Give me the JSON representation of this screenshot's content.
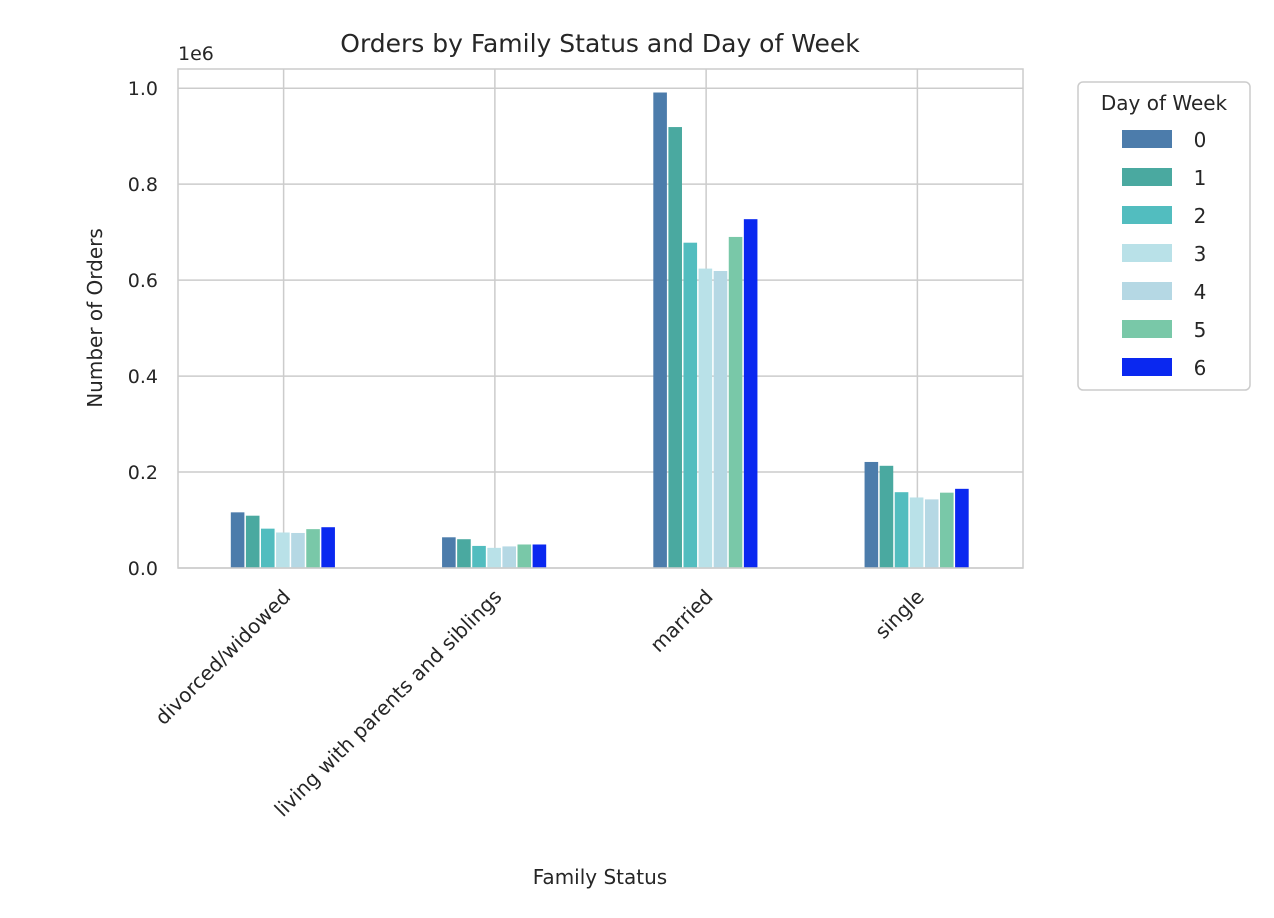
{
  "chart_data": {
    "type": "bar",
    "title": "Orders by Family Status and Day of Week",
    "xlabel": "Family Status",
    "ylabel": "Number of Orders",
    "y_offset_label": "1e6",
    "ylim": [
      0,
      1.04
    ],
    "yticks": [
      "0.0",
      "0.2",
      "0.4",
      "0.6",
      "0.8",
      "1.0"
    ],
    "grid": true,
    "legend": {
      "title": "Day of Week",
      "placement": "outside-right-top"
    },
    "categories": [
      "divorced/widowed",
      "living with parents and siblings",
      "married",
      "single"
    ],
    "series": [
      {
        "name": "0",
        "color": "#4c7cab",
        "values": [
          0.116,
          0.064,
          0.991,
          0.221
        ]
      },
      {
        "name": "1",
        "color": "#4aa9a0",
        "values": [
          0.109,
          0.06,
          0.919,
          0.213
        ]
      },
      {
        "name": "2",
        "color": "#52bdbf",
        "values": [
          0.082,
          0.046,
          0.678,
          0.158
        ]
      },
      {
        "name": "3",
        "color": "#b9e1e8",
        "values": [
          0.074,
          0.042,
          0.624,
          0.147
        ]
      },
      {
        "name": "4",
        "color": "#b5d8e4",
        "values": [
          0.073,
          0.045,
          0.619,
          0.143
        ]
      },
      {
        "name": "5",
        "color": "#79c8a8",
        "values": [
          0.081,
          0.049,
          0.69,
          0.157
        ]
      },
      {
        "name": "6",
        "color": "#0a28f0",
        "values": [
          0.085,
          0.049,
          0.727,
          0.165
        ]
      }
    ]
  }
}
